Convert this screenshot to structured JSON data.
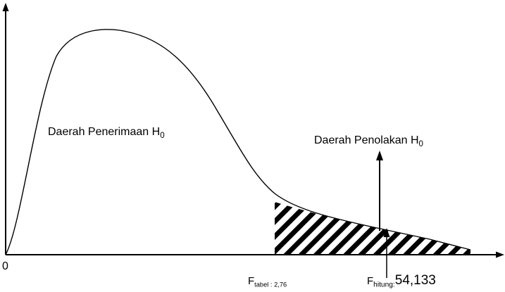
{
  "origin_label": "0",
  "regions": {
    "acceptance": {
      "text": "Daerah Penerimaan H",
      "subscript": "0"
    },
    "rejection": {
      "text": "Daerah Penolakan H",
      "subscript": "0"
    }
  },
  "markers": {
    "f_tabel": {
      "symbol": "F",
      "subscript": "tabel : 2,76"
    },
    "f_hitung": {
      "symbol": "F",
      "subscript": "hitung:",
      "value": "54,133"
    }
  },
  "colors": {
    "line": "#000000",
    "background": "#ffffff"
  }
}
